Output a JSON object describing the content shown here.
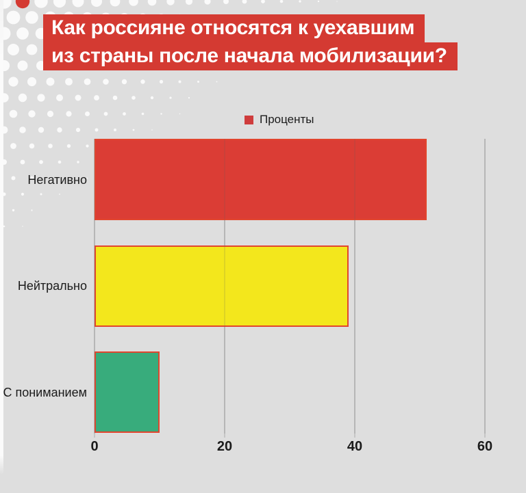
{
  "title": {
    "line1": "Как россияне относятся к уехавшим",
    "line2": "из страны после начала мобилизации?",
    "bg_color": "#d43a32",
    "text_color": "#ffffff"
  },
  "legend": {
    "label": "Проценты",
    "swatch_color": "#cf3c3c"
  },
  "chart_data": {
    "type": "bar",
    "orientation": "horizontal",
    "title": "Как россияне относятся к уехавшим из страны после начала мобилизации?",
    "series_name": "Проценты",
    "categories": [
      "Негативно",
      "Нейтрально",
      "С пониманием"
    ],
    "values": [
      51,
      39,
      10
    ],
    "bar_colors": [
      "#db3d35",
      "#f3e71c",
      "#38ac7c"
    ],
    "bar_border_color": "#e2452e",
    "x_ticks": [
      0,
      20,
      40,
      60
    ],
    "xlim": [
      0,
      63
    ],
    "grid": true,
    "legend_position": "top-center",
    "xlabel": "",
    "ylabel": ""
  },
  "colors": {
    "background": "#dedede",
    "gridline": "#c5c5c5",
    "text": "#1b1b1b",
    "halftone_dot": "#fafafa",
    "accent_dot": "#d43a32"
  }
}
